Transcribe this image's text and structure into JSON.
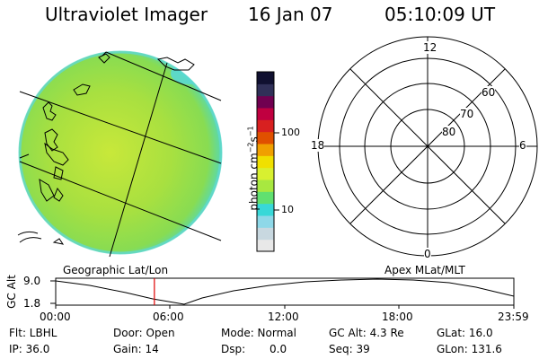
{
  "header": {
    "title": "Ultraviolet Imager",
    "date": "16 Jan 07",
    "time": "05:10:09 UT"
  },
  "colorbar": {
    "unit_prefix": "photon cm",
    "unit_sup1": "−2",
    "unit_mid": "s",
    "unit_sup2": "−1",
    "tick_100": "100",
    "tick_10": "10",
    "colors": [
      "#e8e8e8",
      "#c8d8e0",
      "#8ed8e8",
      "#38d8d8",
      "#60e070",
      "#a8e840",
      "#d8f030",
      "#f0e000",
      "#f0a000",
      "#e05000",
      "#d82020",
      "#c00040",
      "#700050",
      "#303058",
      "#101030"
    ]
  },
  "polar_plot": {
    "label_top": "12",
    "label_bottom": "0",
    "label_left": "18",
    "label_right": "6",
    "lat_60": "60",
    "lat_70": "70",
    "lat_80": "80"
  },
  "timeline": {
    "left_caption": "Geographic Lat/Lon",
    "right_caption": "Apex  MLat/MLT",
    "ylabel": "GC Alt",
    "ytick_top": "9.0",
    "ytick_bottom": "1.8",
    "xticks": [
      "00:00",
      "06:00",
      "12:00",
      "18:00",
      "23:59"
    ],
    "marker_time_hours": 5.17,
    "marker_color": "#e00000"
  },
  "footer": {
    "flt": "Flt: LBHL",
    "ip": "IP: 36.0",
    "door": "Door: Open",
    "gain": "Gain: 14",
    "mode": "Mode: Normal",
    "dsp_label": "Dsp:",
    "dsp_value": "0.0",
    "gc_alt": "GC Alt: 4.3 Re",
    "seq": "Seq: 39",
    "glat": "GLat: 16.0",
    "glon": "GLon: 131.6"
  }
}
